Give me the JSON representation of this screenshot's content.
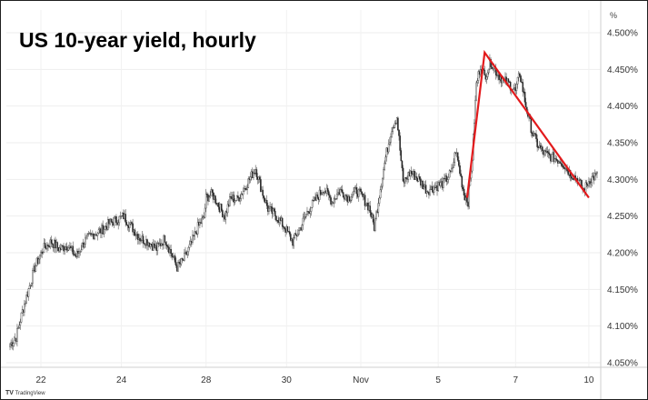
{
  "chart_data": {
    "type": "candlestick",
    "title": "US 10-year yield, hourly",
    "unit_label": "%",
    "ylim": [
      4.04,
      4.52
    ],
    "y_ticks": [
      4.05,
      4.1,
      4.15,
      4.2,
      4.25,
      4.3,
      4.35,
      4.4,
      4.45,
      4.5
    ],
    "y_tick_labels": [
      "4.050%",
      "4.100%",
      "4.150%",
      "4.200%",
      "4.250%",
      "4.300%",
      "4.350%",
      "4.400%",
      "4.450%",
      "4.500%"
    ],
    "x_tick_labels": [
      "22",
      "24",
      "28",
      "30",
      "Nov",
      "5",
      "7",
      "10"
    ],
    "x_tick_index": [
      30,
      108,
      190,
      268,
      340,
      415,
      490,
      561
    ],
    "n_candles": 570,
    "anchors": [
      [
        0,
        4.075
      ],
      [
        6,
        4.085
      ],
      [
        12,
        4.12
      ],
      [
        18,
        4.15
      ],
      [
        24,
        4.18
      ],
      [
        32,
        4.205
      ],
      [
        40,
        4.215
      ],
      [
        48,
        4.205
      ],
      [
        56,
        4.21
      ],
      [
        64,
        4.195
      ],
      [
        72,
        4.215
      ],
      [
        80,
        4.225
      ],
      [
        88,
        4.23
      ],
      [
        96,
        4.24
      ],
      [
        104,
        4.245
      ],
      [
        110,
        4.25
      ],
      [
        118,
        4.235
      ],
      [
        126,
        4.22
      ],
      [
        134,
        4.215
      ],
      [
        142,
        4.205
      ],
      [
        150,
        4.22
      ],
      [
        156,
        4.2
      ],
      [
        162,
        4.18
      ],
      [
        168,
        4.19
      ],
      [
        175,
        4.21
      ],
      [
        182,
        4.235
      ],
      [
        188,
        4.248
      ],
      [
        190,
        4.275
      ],
      [
        196,
        4.28
      ],
      [
        202,
        4.265
      ],
      [
        208,
        4.25
      ],
      [
        214,
        4.275
      ],
      [
        220,
        4.272
      ],
      [
        226,
        4.285
      ],
      [
        232,
        4.3
      ],
      [
        238,
        4.315
      ],
      [
        244,
        4.285
      ],
      [
        250,
        4.26
      ],
      [
        258,
        4.25
      ],
      [
        266,
        4.235
      ],
      [
        274,
        4.215
      ],
      [
        280,
        4.23
      ],
      [
        288,
        4.255
      ],
      [
        296,
        4.272
      ],
      [
        304,
        4.288
      ],
      [
        312,
        4.27
      ],
      [
        320,
        4.285
      ],
      [
        328,
        4.275
      ],
      [
        336,
        4.285
      ],
      [
        342,
        4.275
      ],
      [
        348,
        4.262
      ],
      [
        353,
        4.235
      ],
      [
        358,
        4.28
      ],
      [
        364,
        4.33
      ],
      [
        370,
        4.37
      ],
      [
        375,
        4.385
      ],
      [
        381,
        4.295
      ],
      [
        388,
        4.31
      ],
      [
        396,
        4.3
      ],
      [
        404,
        4.285
      ],
      [
        412,
        4.29
      ],
      [
        420,
        4.295
      ],
      [
        428,
        4.31
      ],
      [
        432,
        4.34
      ],
      [
        436,
        4.31
      ],
      [
        440,
        4.28
      ],
      [
        444,
        4.27
      ],
      [
        448,
        4.33
      ],
      [
        452,
        4.43
      ],
      [
        456,
        4.455
      ],
      [
        460,
        4.44
      ],
      [
        466,
        4.46
      ],
      [
        472,
        4.445
      ],
      [
        478,
        4.435
      ],
      [
        484,
        4.43
      ],
      [
        490,
        4.42
      ],
      [
        494,
        4.445
      ],
      [
        500,
        4.4
      ],
      [
        506,
        4.365
      ],
      [
        512,
        4.345
      ],
      [
        518,
        4.335
      ],
      [
        526,
        4.33
      ],
      [
        534,
        4.325
      ],
      [
        542,
        4.31
      ],
      [
        550,
        4.3
      ],
      [
        556,
        4.285
      ],
      [
        562,
        4.3
      ],
      [
        568,
        4.305
      ]
    ],
    "trendline": {
      "color": "#e31a1c",
      "points": [
        [
          443,
          4.275
        ],
        [
          460,
          4.473
        ],
        [
          561,
          4.275
        ]
      ]
    },
    "grid": true,
    "up_color": "#ffffff",
    "down_color": "#1f1f1f",
    "wick_color": "#555555"
  },
  "branding": {
    "label": "TradingView"
  }
}
